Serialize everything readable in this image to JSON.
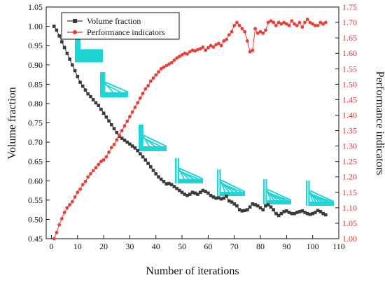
{
  "chart_data": {
    "type": "line",
    "xlabel": "Number of iterations",
    "ylabel_left": "Volume fraction",
    "ylabel_right": "Performance indicators",
    "xlim": [
      -2,
      110
    ],
    "ylim_left": [
      0.45,
      1.05
    ],
    "ylim_right": [
      1.0,
      1.75
    ],
    "x_ticks": [
      0,
      10,
      20,
      30,
      40,
      50,
      60,
      70,
      80,
      90,
      100,
      110
    ],
    "y_left_ticks": [
      0.45,
      0.5,
      0.55,
      0.6,
      0.65,
      0.7,
      0.75,
      0.8,
      0.85,
      0.9,
      0.95,
      1.0,
      1.05
    ],
    "y_right_ticks": [
      1.0,
      1.05,
      1.1,
      1.15,
      1.2,
      1.25,
      1.3,
      1.35,
      1.4,
      1.45,
      1.5,
      1.55,
      1.6,
      1.65,
      1.7,
      1.75
    ],
    "legend_position": "top-left",
    "grid": false,
    "series": [
      {
        "name": "Volume fraction",
        "axis": "left",
        "color": "#3a3a3a",
        "marker": "square",
        "x": [
          1,
          2,
          3,
          4,
          5,
          6,
          7,
          8,
          9,
          10,
          11,
          12,
          13,
          14,
          15,
          16,
          17,
          18,
          19,
          20,
          21,
          22,
          23,
          24,
          25,
          26,
          27,
          28,
          29,
          30,
          31,
          32,
          33,
          34,
          35,
          36,
          37,
          38,
          39,
          40,
          41,
          42,
          43,
          44,
          45,
          46,
          47,
          48,
          49,
          50,
          51,
          52,
          53,
          54,
          55,
          56,
          57,
          58,
          59,
          60,
          61,
          62,
          63,
          64,
          65,
          66,
          67,
          68,
          69,
          70,
          71,
          72,
          73,
          74,
          75,
          76,
          77,
          78,
          79,
          80,
          81,
          82,
          83,
          84,
          85,
          86,
          87,
          88,
          89,
          90,
          91,
          92,
          93,
          94,
          95,
          96,
          97,
          98,
          99,
          100,
          101,
          102,
          103,
          104,
          105
        ],
        "values": [
          1.0,
          0.99,
          0.975,
          0.96,
          0.945,
          0.93,
          0.915,
          0.9,
          0.885,
          0.87,
          0.855,
          0.845,
          0.835,
          0.825,
          0.818,
          0.81,
          0.802,
          0.795,
          0.785,
          0.775,
          0.765,
          0.755,
          0.745,
          0.735,
          0.725,
          0.715,
          0.71,
          0.705,
          0.7,
          0.695,
          0.69,
          0.685,
          0.678,
          0.67,
          0.662,
          0.654,
          0.645,
          0.636,
          0.627,
          0.618,
          0.61,
          0.604,
          0.598,
          0.592,
          0.593,
          0.59,
          0.585,
          0.58,
          0.575,
          0.57,
          0.565,
          0.562,
          0.565,
          0.57,
          0.568,
          0.565,
          0.57,
          0.575,
          0.572,
          0.568,
          0.562,
          0.558,
          0.555,
          0.556,
          0.553,
          0.555,
          0.56,
          0.548,
          0.545,
          0.54,
          0.535,
          0.525,
          0.522,
          0.523,
          0.525,
          0.532,
          0.54,
          0.538,
          0.535,
          0.53,
          0.525,
          0.535,
          0.538,
          0.532,
          0.525,
          0.515,
          0.51,
          0.515,
          0.52,
          0.522,
          0.518,
          0.515,
          0.515,
          0.518,
          0.52,
          0.522,
          0.518,
          0.515,
          0.513,
          0.515,
          0.518,
          0.523,
          0.52,
          0.515,
          0.512
        ]
      },
      {
        "name": "Performance indicators",
        "axis": "right",
        "color": "#ee3b36",
        "marker": "circle",
        "x": [
          1,
          2,
          3,
          4,
          5,
          6,
          7,
          8,
          9,
          10,
          11,
          12,
          13,
          14,
          15,
          16,
          17,
          18,
          19,
          20,
          21,
          22,
          23,
          24,
          25,
          26,
          27,
          28,
          29,
          30,
          31,
          32,
          33,
          34,
          35,
          36,
          37,
          38,
          39,
          40,
          41,
          42,
          43,
          44,
          45,
          46,
          47,
          48,
          49,
          50,
          51,
          52,
          53,
          54,
          55,
          56,
          57,
          58,
          59,
          60,
          61,
          62,
          63,
          64,
          65,
          66,
          67,
          68,
          69,
          70,
          71,
          72,
          73,
          74,
          75,
          76,
          77,
          78,
          79,
          80,
          81,
          82,
          83,
          84,
          85,
          86,
          87,
          88,
          89,
          90,
          91,
          92,
          93,
          94,
          95,
          96,
          97,
          98,
          99,
          100,
          101,
          102,
          103,
          104,
          105
        ],
        "values": [
          1.0,
          1.02,
          1.045,
          1.065,
          1.085,
          1.1,
          1.11,
          1.12,
          1.135,
          1.15,
          1.16,
          1.175,
          1.185,
          1.2,
          1.21,
          1.22,
          1.23,
          1.24,
          1.25,
          1.255,
          1.265,
          1.28,
          1.295,
          1.305,
          1.32,
          1.335,
          1.35,
          1.365,
          1.38,
          1.395,
          1.41,
          1.425,
          1.44,
          1.455,
          1.47,
          1.485,
          1.495,
          1.51,
          1.52,
          1.53,
          1.54,
          1.55,
          1.555,
          1.56,
          1.565,
          1.57,
          1.578,
          1.585,
          1.59,
          1.595,
          1.6,
          1.598,
          1.605,
          1.61,
          1.608,
          1.612,
          1.615,
          1.62,
          1.61,
          1.618,
          1.625,
          1.62,
          1.628,
          1.632,
          1.625,
          1.64,
          1.645,
          1.66,
          1.67,
          1.69,
          1.7,
          1.69,
          1.68,
          1.67,
          1.64,
          1.605,
          1.61,
          1.68,
          1.665,
          1.67,
          1.665,
          1.675,
          1.7,
          1.705,
          1.7,
          1.69,
          1.7,
          1.695,
          1.7,
          1.695,
          1.69,
          1.705,
          1.695,
          1.69,
          1.7,
          1.685,
          1.7,
          1.71,
          1.7,
          1.695,
          1.69,
          1.69,
          1.7,
          1.695,
          1.7
        ]
      }
    ],
    "inset_images_description_count": 7
  }
}
